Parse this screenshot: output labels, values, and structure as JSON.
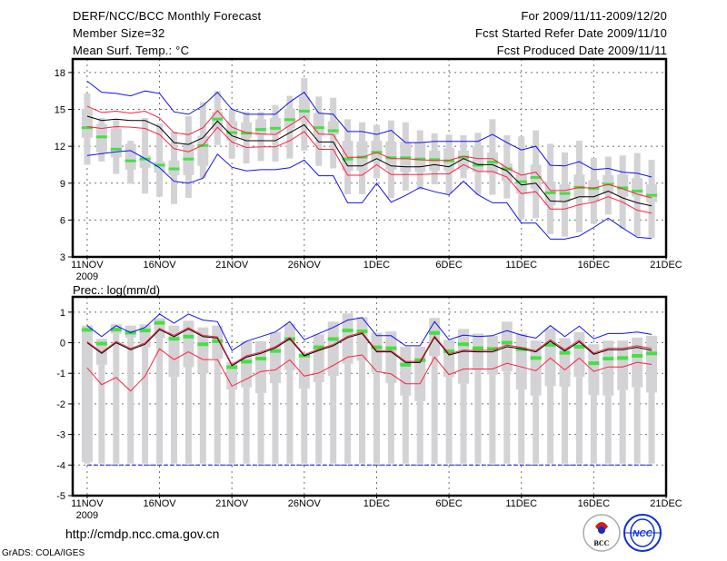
{
  "header": {
    "title": "DERF/NCC/BCC Monthly Forecast",
    "member_size": "Member Size=32",
    "variable": "Mean Surf. Temp.: °C",
    "period": "For 2009/11/11-2009/12/20",
    "started": "Fcst Started Refer Date 2009/11/10",
    "produced": "Fcst Produced Date 2009/11/11"
  },
  "footer": {
    "url": "http://cmdp.ncc.cma.gov.cn",
    "grads": "GrADS: COLA/IGES",
    "logo_bcc": "BCC",
    "logo_ncc": "NCC"
  },
  "colors": {
    "box": "#d3d3d6",
    "obs": "#44e044",
    "mean": "#000000",
    "sd": "#ff2040",
    "range": "#1010f0",
    "grid": "#707070"
  },
  "chart_data": [
    {
      "type": "line",
      "title": "Mean Surf. Temp.: °C",
      "x_ticks": [
        {
          "day": 0,
          "label": "11NOV"
        },
        {
          "day": 5,
          "label": "16NOV"
        },
        {
          "day": 10,
          "label": "21NOV"
        },
        {
          "day": 15,
          "label": "26NOV"
        },
        {
          "day": 20,
          "label": "1DEC"
        },
        {
          "day": 25,
          "label": "6DEC"
        },
        {
          "day": 30,
          "label": "11DEC"
        },
        {
          "day": 35,
          "label": "16DEC"
        },
        {
          "day": 40,
          "label": "21DEC"
        }
      ],
      "year_label": "2009",
      "y_ticks": [
        3,
        6,
        9,
        12,
        15,
        18
      ],
      "ylim": [
        3,
        19.1
      ],
      "xlim": [
        -1,
        40
      ],
      "grid": true,
      "series": {
        "ens_max": [
          17.3,
          16.4,
          16.3,
          16.1,
          16.5,
          16.3,
          14.8,
          14.6,
          15.3,
          16.4,
          15.0,
          14.6,
          14.6,
          14.6,
          15.6,
          16.4,
          14.7,
          14.6,
          13.2,
          13.2,
          12.96,
          13.3,
          12.3,
          12.3,
          12.4,
          12.4,
          12.4,
          12.4,
          12.96,
          12.3,
          11.7,
          12.0,
          10.45,
          10.4,
          10.75,
          10.1,
          10.2,
          9.9,
          9.8,
          9.5
        ],
        "ens_min": [
          11.24,
          11.4,
          11.55,
          11.65,
          11.0,
          10.25,
          9.15,
          9.0,
          9.4,
          11.35,
          10.3,
          10.0,
          10.1,
          10.1,
          10.25,
          10.87,
          9.6,
          9.6,
          7.4,
          7.4,
          9.0,
          7.45,
          8.0,
          8.65,
          8.3,
          8.05,
          9.15,
          8.05,
          7.4,
          7.4,
          5.75,
          5.75,
          4.45,
          4.45,
          4.7,
          5.4,
          6.15,
          5.35,
          4.6,
          4.5
        ],
        "mean": [
          14.45,
          14.1,
          14.2,
          14.1,
          14.1,
          13.55,
          12.3,
          12.15,
          12.7,
          14.05,
          12.85,
          12.45,
          12.45,
          12.45,
          13.1,
          13.75,
          12.35,
          12.35,
          10.4,
          10.4,
          11.0,
          10.4,
          10.33,
          10.33,
          10.5,
          10.33,
          11.0,
          10.5,
          10.5,
          10.0,
          8.85,
          9.0,
          7.55,
          7.5,
          7.9,
          7.9,
          8.35,
          7.8,
          7.4,
          7.15
        ],
        "mean_plus_sd": [
          15.25,
          14.75,
          14.85,
          14.7,
          14.85,
          14.3,
          13.1,
          12.95,
          13.5,
          14.9,
          13.55,
          13.1,
          13.0,
          12.95,
          13.7,
          14.45,
          13.0,
          12.95,
          11.1,
          11.1,
          11.5,
          11.0,
          11.0,
          10.9,
          10.85,
          10.85,
          11.2,
          11.0,
          11.0,
          10.25,
          9.65,
          9.9,
          8.4,
          8.4,
          8.65,
          8.6,
          8.9,
          8.55,
          8.1,
          7.8
        ],
        "mean_minus_sd": [
          13.6,
          13.45,
          13.6,
          13.55,
          13.45,
          12.95,
          11.8,
          11.55,
          12.1,
          13.55,
          12.35,
          11.9,
          11.95,
          11.95,
          12.45,
          13.2,
          11.75,
          11.75,
          9.65,
          9.65,
          10.5,
          9.7,
          9.7,
          9.7,
          9.75,
          9.75,
          10.5,
          9.95,
          9.95,
          9.5,
          8.15,
          8.3,
          6.9,
          6.9,
          7.25,
          7.45,
          7.9,
          7.45,
          6.8,
          6.55
        ]
      },
      "boxes": {
        "max": [
          16.3,
          14.3,
          14.2,
          12.45,
          14.3,
          13.85,
          13.2,
          14.45,
          15.6,
          16.5,
          15.05,
          14.8,
          14.8,
          15.35,
          16.1,
          17.55,
          16.05,
          15.95,
          14.2,
          13.95,
          13.75,
          14.1,
          13.95,
          13.3,
          13.05,
          12.95,
          12.9,
          13.1,
          14.2,
          12.9,
          12.8,
          13.3,
          12.2,
          11.5,
          12.45,
          11.05,
          11.15,
          11.25,
          11.45,
          10.9
        ],
        "q3": [
          15.05,
          13.8,
          13.45,
          12.2,
          11.25,
          10.75,
          10.85,
          12.2,
          12.85,
          14.8,
          14.05,
          13.95,
          14.2,
          14.3,
          15.05,
          16.05,
          14.7,
          14.05,
          12.45,
          12.4,
          12.45,
          12.4,
          12.35,
          12.35,
          11.65,
          11.85,
          11.65,
          12.0,
          11.5,
          10.6,
          9.75,
          10.5,
          9.15,
          8.9,
          9.7,
          9.25,
          9.65,
          9.7,
          9.4,
          8.9
        ],
        "q1": [
          12.7,
          11.5,
          11.1,
          10.1,
          10.25,
          9.85,
          9.65,
          9.65,
          10.4,
          13.3,
          12.45,
          12.65,
          12.9,
          12.95,
          13.45,
          14.05,
          12.85,
          12.95,
          10.0,
          10.0,
          10.75,
          10.1,
          9.9,
          9.9,
          10.0,
          10.0,
          10.1,
          9.9,
          9.75,
          9.15,
          8.15,
          8.55,
          7.2,
          7.45,
          7.8,
          7.5,
          8.15,
          7.9,
          7.9,
          7.45
        ],
        "min": [
          10.5,
          10.75,
          9.75,
          8.95,
          8.15,
          7.9,
          7.3,
          7.8,
          9.4,
          12.1,
          11.0,
          10.6,
          10.8,
          10.75,
          11.0,
          11.65,
          10.4,
          10.2,
          8.1,
          8.1,
          9.4,
          7.8,
          8.4,
          8.45,
          8.9,
          8.15,
          9.4,
          8.05,
          8.05,
          7.75,
          6.05,
          6.15,
          4.85,
          4.65,
          5.0,
          5.7,
          6.45,
          5.3,
          4.7,
          4.55
        ],
        "observed": [
          13.55,
          12.8,
          11.8,
          10.85,
          11.0,
          10.5,
          10.2,
          11.0,
          12.1,
          14.25,
          13.15,
          13.1,
          13.4,
          13.5,
          14.2,
          14.9,
          13.55,
          13.3,
          11.0,
          11.15,
          11.55,
          11.1,
          11.1,
          11.0,
          10.95,
          10.85,
          11.15,
          10.5,
          10.75,
          10.2,
          9.15,
          9.5,
          8.25,
          8.2,
          8.7,
          8.6,
          8.95,
          8.65,
          8.4,
          8.05
        ]
      }
    },
    {
      "type": "line",
      "title": "Prec.: log(mm/d)",
      "x_ticks": [
        {
          "day": 0,
          "label": "11NOV"
        },
        {
          "day": 5,
          "label": "16NOV"
        },
        {
          "day": 10,
          "label": "21NOV"
        },
        {
          "day": 15,
          "label": "26NOV"
        },
        {
          "day": 20,
          "label": "1DEC"
        },
        {
          "day": 25,
          "label": "6DEC"
        },
        {
          "day": 30,
          "label": "11DEC"
        },
        {
          "day": 35,
          "label": "16DEC"
        },
        {
          "day": 40,
          "label": "21DEC"
        }
      ],
      "year_label": "2009",
      "y_ticks": [
        -5,
        -4,
        -3,
        -2,
        -1,
        0,
        1
      ],
      "ylim": [
        -5,
        1.5
      ],
      "xlim": [
        -1,
        40
      ],
      "grid": true,
      "series": {
        "ens_max": [
          0.56,
          0.2,
          0.56,
          0.33,
          0.5,
          0.94,
          0.64,
          0.94,
          0.74,
          0.69,
          -0.25,
          0.05,
          0.2,
          0.35,
          0.69,
          0.1,
          0.3,
          0.5,
          0.74,
          0.82,
          0.23,
          0.23,
          -0.1,
          -0.1,
          0.69,
          0.1,
          0.25,
          0.2,
          0.23,
          0.4,
          0.25,
          0.15,
          0.56,
          0.2,
          0.54,
          0.13,
          0.3,
          0.3,
          0.35,
          0.27
        ],
        "ens_min": [
          -4,
          -4,
          -4,
          -4,
          -4,
          -4,
          -4,
          -4,
          -4,
          -4,
          -4,
          -4,
          -4,
          -4,
          -4,
          -4,
          -4,
          -4,
          -4,
          -4,
          -4,
          -4,
          -4,
          -4,
          -4,
          -4,
          -4,
          -4,
          -4,
          -4,
          -4,
          -4,
          -4,
          -4,
          -4,
          -4,
          -4,
          -4,
          -4,
          -4
        ],
        "mean": [
          0,
          -0.35,
          0,
          -0.23,
          -0.05,
          0.43,
          0.2,
          0.45,
          0.2,
          0.15,
          -0.75,
          -0.47,
          -0.35,
          -0.17,
          0.13,
          -0.43,
          -0.25,
          -0.1,
          0.17,
          0.3,
          -0.3,
          -0.3,
          -0.65,
          -0.65,
          0.18,
          -0.4,
          -0.28,
          -0.3,
          -0.3,
          -0.13,
          -0.2,
          -0.3,
          0.05,
          -0.27,
          0.03,
          -0.38,
          -0.23,
          -0.23,
          -0.15,
          -0.25
        ],
        "mean_plus_sd": [
          0.03,
          -0.31,
          0.04,
          -0.19,
          -0.01,
          0.47,
          0.24,
          0.49,
          0.24,
          0.19,
          -0.71,
          -0.43,
          -0.31,
          -0.13,
          0.17,
          -0.39,
          -0.21,
          -0.06,
          0.21,
          0.34,
          -0.26,
          -0.26,
          -0.61,
          -0.61,
          0.22,
          -0.36,
          -0.24,
          -0.26,
          -0.24,
          -0.08,
          -0.15,
          -0.26,
          0.1,
          -0.22,
          0.08,
          -0.34,
          -0.18,
          -0.18,
          -0.1,
          -0.19
        ],
        "mean_minus_sd": [
          -0.82,
          -1.37,
          -1.14,
          -1.58,
          -1.09,
          -0.2,
          -0.55,
          -0.3,
          -0.55,
          -0.55,
          -1.42,
          -1.19,
          -0.94,
          -0.89,
          -0.56,
          -1.09,
          -0.99,
          -0.74,
          -0.47,
          -0.4,
          -0.94,
          -1.02,
          -1.34,
          -1.34,
          -0.47,
          -1.04,
          -0.86,
          -0.86,
          -0.86,
          -0.67,
          -0.79,
          -0.92,
          -0.5,
          -0.89,
          -0.5,
          -0.94,
          -0.79,
          -0.79,
          -0.64,
          -0.71
        ]
      },
      "boxes": {
        "max": [
          0.56,
          0.13,
          0.6,
          0.56,
          0.6,
          0.8,
          0.56,
          0.72,
          0.5,
          0.56,
          -0.64,
          0.05,
          0.05,
          0.35,
          0.62,
          -0.37,
          0.27,
          0.69,
          0.96,
          0.84,
          0.33,
          0.37,
          -0.13,
          -0.13,
          0.81,
          0.1,
          0.45,
          0.3,
          0.23,
          0.69,
          0.3,
          0.07,
          0.47,
          0.15,
          0.35,
          -0.05,
          0.07,
          0.07,
          0.17,
          0.23
        ],
        "q1": [
          -3.9,
          -0.72,
          0.3,
          0.17,
          -0.15,
          0.15,
          -1.12,
          -0.8,
          -1.0,
          -0.52,
          -1.53,
          -1.46,
          -1.65,
          -1.32,
          -0.89,
          -1.5,
          -1.29,
          -1.09,
          -0.69,
          -0.59,
          -0.96,
          -1.32,
          -1.73,
          -1.91,
          -0.43,
          -1.12,
          -1.34,
          -0.89,
          -1.04,
          -0.94,
          -1.53,
          -1.73,
          -1.42,
          -1.44,
          -1.12,
          -1.71,
          -1.73,
          -1.55,
          -1.46,
          -1.63
        ],
        "min": [
          -3.95,
          -3.95,
          -3.95,
          -3.95,
          -3.95,
          -3.95,
          -3.95,
          -3.95,
          -3.95,
          -3.95,
          -3.95,
          -3.95,
          -3.95,
          -3.95,
          -3.95,
          -3.95,
          -3.95,
          -3.95,
          -3.95,
          -3.95,
          -3.95,
          -3.95,
          -3.95,
          -3.95,
          -3.95,
          -3.95,
          -3.95,
          -3.95,
          -3.95,
          -3.95,
          -3.95,
          -3.95,
          -3.95,
          -3.95,
          -3.95,
          -3.95,
          -3.95,
          -3.95,
          -3.95,
          -3.95
        ],
        "observed": [
          0.42,
          -0.03,
          0.43,
          0.33,
          0.4,
          0.65,
          0.13,
          0.2,
          -0.05,
          0.05,
          -0.8,
          -0.62,
          -0.52,
          -0.27,
          0.12,
          -0.42,
          -0.15,
          0.12,
          0.4,
          0.37,
          -0.15,
          -0.18,
          -0.72,
          -0.57,
          0.32,
          -0.28,
          -0.05,
          -0.18,
          -0.2,
          0.0,
          -0.21,
          -0.5,
          -0.07,
          -0.33,
          -0.13,
          -0.67,
          -0.52,
          -0.5,
          -0.43,
          -0.35
        ]
      }
    }
  ]
}
